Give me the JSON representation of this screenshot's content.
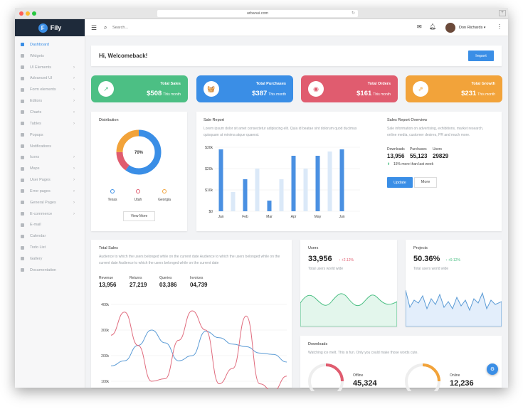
{
  "browser": {
    "url": "urbanui.com"
  },
  "brand": {
    "name": "Fily",
    "logo_letter": "F"
  },
  "sidebar": {
    "items": [
      {
        "label": "Dashboard",
        "chev": ""
      },
      {
        "label": "Widgets",
        "chev": ""
      },
      {
        "label": "UI Elements",
        "chev": "›"
      },
      {
        "label": "Advanced UI",
        "chev": "›"
      },
      {
        "label": "Form elements",
        "chev": "›"
      },
      {
        "label": "Editors",
        "chev": "›"
      },
      {
        "label": "Charts",
        "chev": "›"
      },
      {
        "label": "Tables",
        "chev": "›"
      },
      {
        "label": "Popups",
        "chev": ""
      },
      {
        "label": "Notifications",
        "chev": ""
      },
      {
        "label": "Icons",
        "chev": "›"
      },
      {
        "label": "Maps",
        "chev": "›"
      },
      {
        "label": "User Pages",
        "chev": "›"
      },
      {
        "label": "Error pages",
        "chev": "›"
      },
      {
        "label": "General Pages",
        "chev": "›"
      },
      {
        "label": "E-commerce",
        "chev": "›"
      },
      {
        "label": "E-mail",
        "chev": ""
      },
      {
        "label": "Calendar",
        "chev": ""
      },
      {
        "label": "Todo List",
        "chev": ""
      },
      {
        "label": "Gallery",
        "chev": ""
      },
      {
        "label": "Documentation",
        "chev": ""
      }
    ]
  },
  "topbar": {
    "search_placeholder": "Search...",
    "user_name": "Don Richards",
    "caret": "▾"
  },
  "welcome": {
    "title": "Hi, Welcomeback!",
    "import_label": "Import"
  },
  "stats": [
    {
      "label": "Total Sales",
      "value": "$508",
      "suffix": "This month",
      "color": "#4cbf84",
      "icon": "↗"
    },
    {
      "label": "Total Purchases",
      "value": "$387",
      "suffix": "This month",
      "color": "#3a8ee6",
      "icon": "🧺"
    },
    {
      "label": "Total Orders",
      "value": "$161",
      "suffix": "This month",
      "color": "#e05c6f",
      "icon": "◉"
    },
    {
      "label": "Total Growth",
      "value": "$231",
      "suffix": "This month",
      "color": "#f2a33a",
      "icon": "⇗"
    }
  ],
  "distribution": {
    "title": "Distribution",
    "center_label": "70%",
    "legend": [
      {
        "label": "Texas",
        "color": "#3a8ee6"
      },
      {
        "label": "Utah",
        "color": "#e05c6f"
      },
      {
        "label": "Georgia",
        "color": "#f2a33a"
      }
    ],
    "view_more": "View More"
  },
  "sale_report": {
    "title": "Sale Report",
    "description": "Lorem ipsum dolor sit amet consectetur adipiscing elit. Quia id beatae sint dolorum quod ducimus quisquam ut minima atque quaerat.",
    "overview_title": "Sales Report Overview",
    "overview_text": "Sale information on advertising, exhibitions, market research, online media, customer desires, PR and much more.",
    "metrics": [
      {
        "label": "Downloads",
        "value": "13,956"
      },
      {
        "label": "Purchases",
        "value": "55,123"
      },
      {
        "label": "Users",
        "value": "29829"
      }
    ],
    "growth_text": "15% more than last week",
    "update_label": "Update",
    "more_label": "More"
  },
  "total_sales": {
    "title": "Total Sales",
    "description": "Audience to which the users belonged while on the current date Audience to which the users belonged while on the current date Audience to which the users belonged while on the current date",
    "metrics": [
      {
        "label": "Revenue",
        "value": "13,956"
      },
      {
        "label": "Returns",
        "value": "27,219"
      },
      {
        "label": "Queries",
        "value": "03,386"
      },
      {
        "label": "Invoices",
        "value": "04,739"
      }
    ]
  },
  "users_card": {
    "title": "Users",
    "value": "33,956",
    "delta": "↑ +2.12%",
    "subtitle": "Total users world wide",
    "color": "#e05c6f"
  },
  "projects_card": {
    "title": "Projects",
    "value": "50.36%",
    "delta": "↑ +9.12%",
    "subtitle": "Total users world wide",
    "color": "#4cbf84"
  },
  "downloads": {
    "title": "Downloads",
    "description": "Watching ice melt. This is fun. Only you could make those words cute.",
    "offline_label": "Offline",
    "offline_value": "45,324",
    "online_label": "Online",
    "online_value": "12,236"
  },
  "chart_data": [
    {
      "type": "bar",
      "title": "",
      "categories": [
        "Jan",
        "",
        "Feb",
        "",
        "Mar",
        "",
        "Apr",
        "",
        "May",
        "",
        "Jun",
        ""
      ],
      "series": [
        {
          "values": [
            29,
            9,
            15,
            20,
            5,
            15,
            26,
            20,
            26,
            28,
            29,
            0
          ]
        }
      ],
      "colors": [
        "#4a90e2",
        "#dbe9f8",
        "#4a90e2",
        "#dbe9f8",
        "#4a90e2",
        "#dbe9f8",
        "#4a90e2",
        "#dbe9f8",
        "#4a90e2",
        "#dbe9f8",
        "#4a90e2",
        "#dbe9f8"
      ],
      "yticks": [
        "$0",
        "$10k",
        "$20k",
        "$30k"
      ],
      "ylim": [
        0,
        30
      ]
    },
    {
      "type": "pie",
      "title": "Distribution",
      "categories": [
        "Texas",
        "Utah",
        "Georgia"
      ],
      "values": [
        60,
        15,
        25
      ],
      "colors": [
        "#3a8ee6",
        "#e05c6f",
        "#f2a33a"
      ]
    },
    {
      "type": "line",
      "title": "Total Sales",
      "x": [
        0,
        1,
        2,
        3,
        4,
        5,
        6,
        7,
        8,
        9,
        10,
        11,
        12,
        13
      ],
      "series": [
        {
          "color": "#5b9bd5",
          "values": [
            160,
            180,
            240,
            300,
            250,
            180,
            200,
            295,
            270,
            245,
            235,
            210,
            205,
            175
          ]
        },
        {
          "color": "#e06b7d",
          "values": [
            280,
            370,
            240,
            100,
            110,
            260,
            375,
            300,
            90,
            150,
            355,
            90,
            60,
            120
          ]
        }
      ],
      "yticks": [
        "100k",
        "200k",
        "300k",
        "400k"
      ],
      "ylim": [
        100,
        400
      ]
    }
  ]
}
